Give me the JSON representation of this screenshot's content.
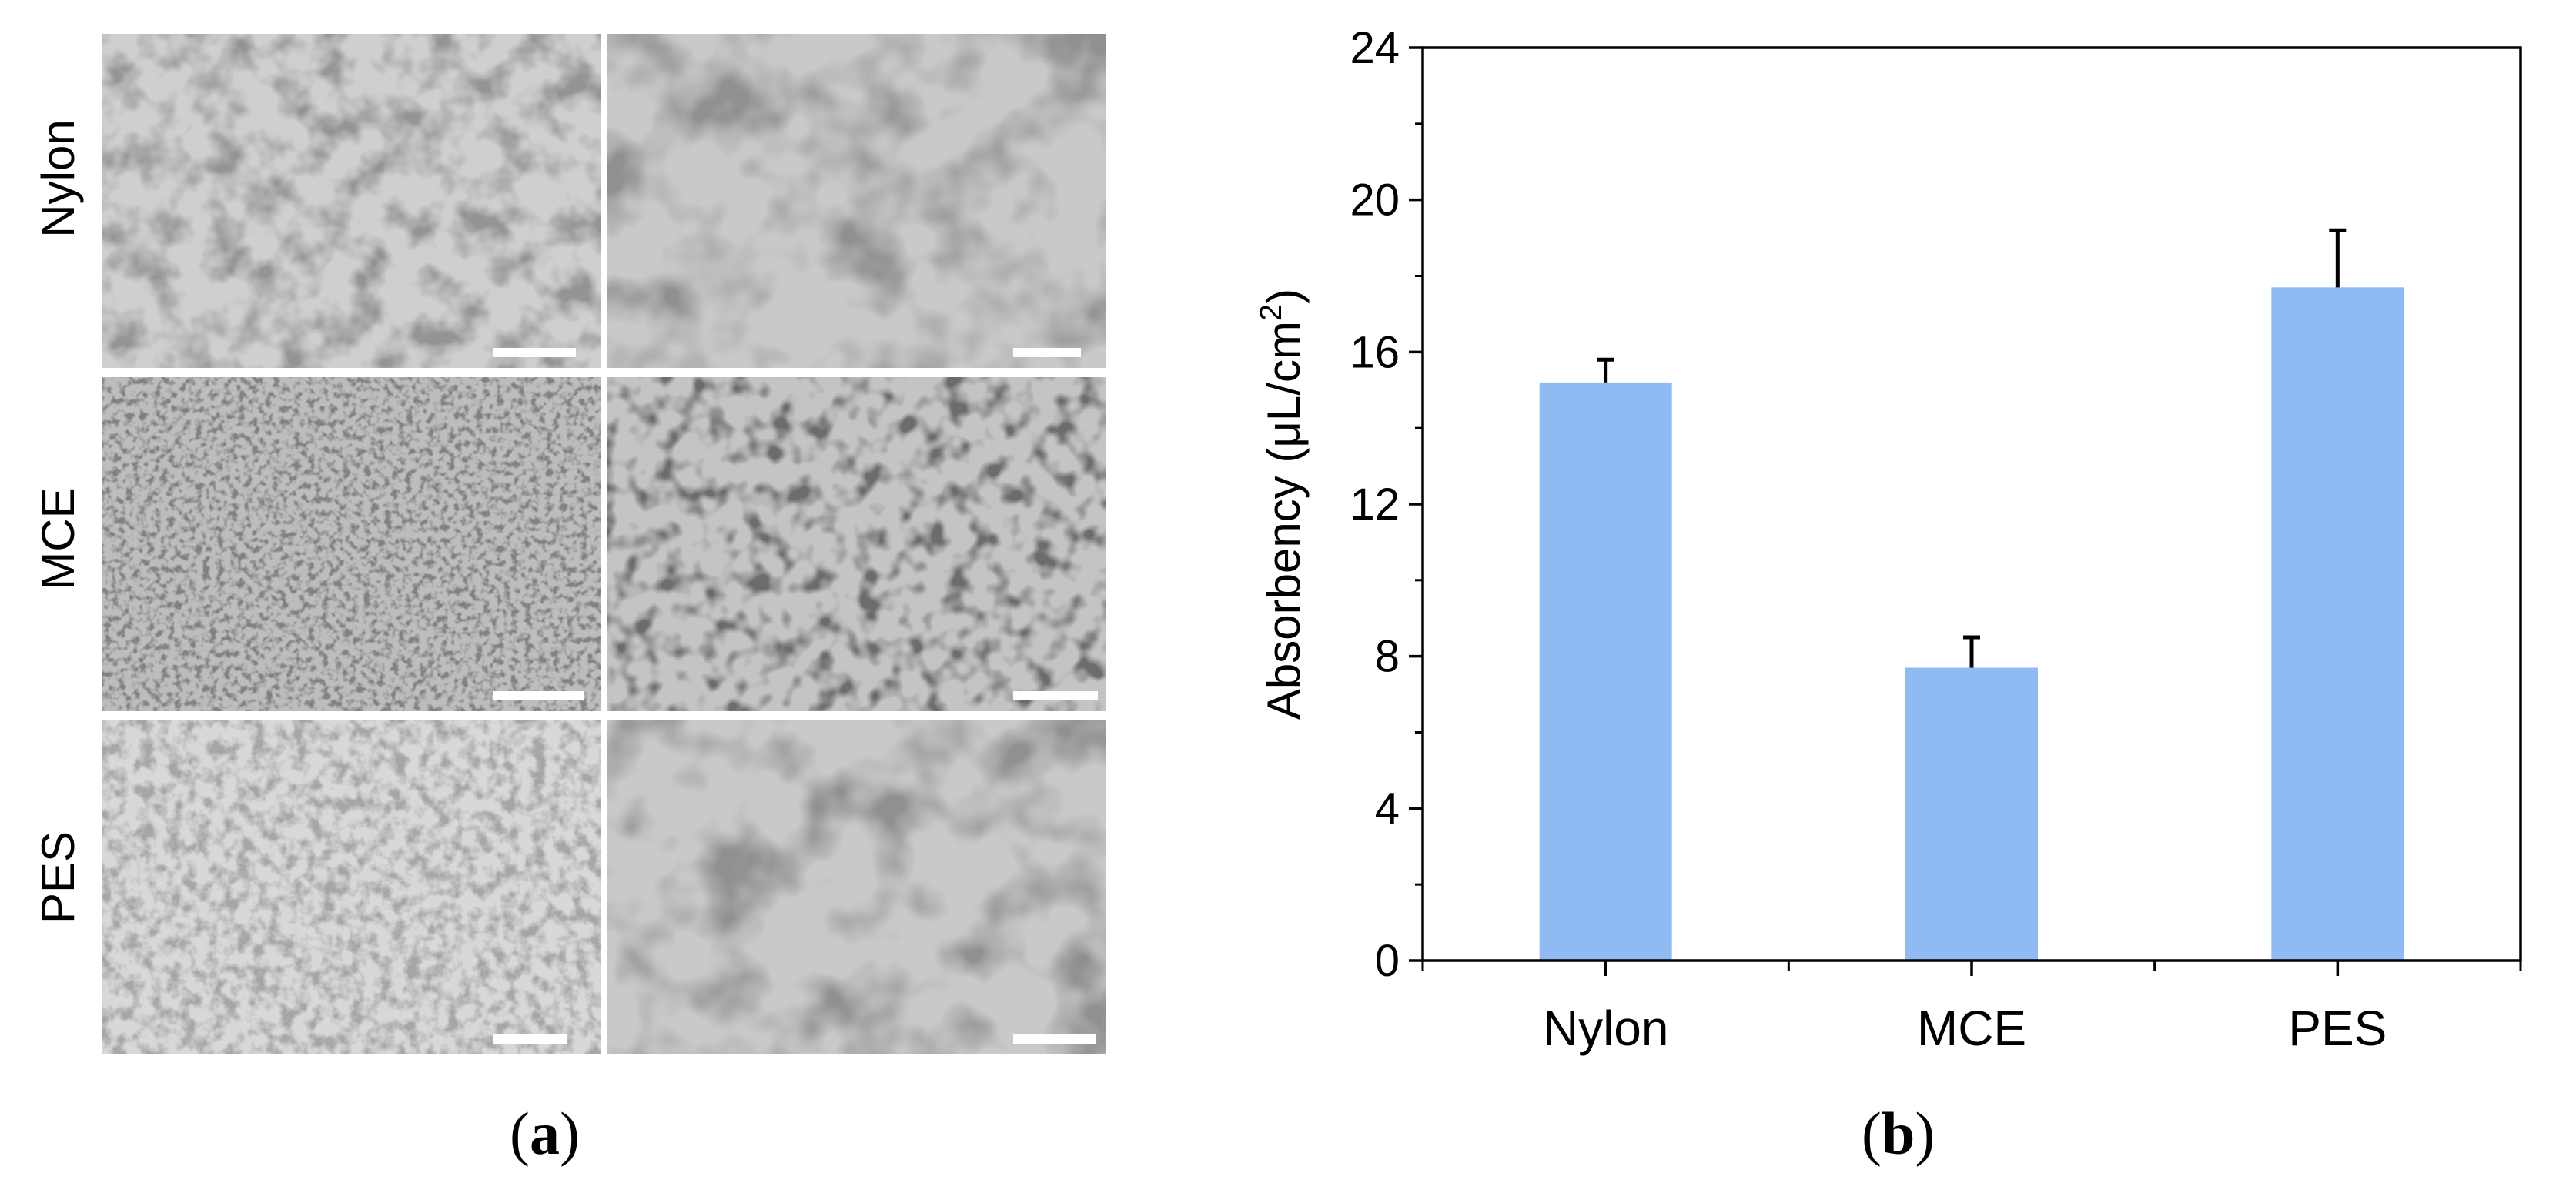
{
  "panel_a": {
    "row_labels": [
      "Nylon",
      "MCE",
      "PES"
    ],
    "caption_open": "(",
    "caption_letter": "a",
    "caption_close": ")"
  },
  "panel_b": {
    "caption_open": "(",
    "caption_letter": "b",
    "caption_close": ")"
  },
  "chart_data": {
    "type": "bar",
    "categories": [
      "Nylon",
      "MCE",
      "PES"
    ],
    "values": [
      15.2,
      7.7,
      17.7
    ],
    "errors": [
      0.6,
      0.8,
      1.5
    ],
    "xlabel": "",
    "ylabel_main": "Absorbency (μL/cm",
    "ylabel_sup": "2",
    "ylabel_close": ")",
    "ylim": [
      0,
      24
    ],
    "yticks": [
      "0",
      "4",
      "8",
      "12",
      "16",
      "20",
      "24"
    ],
    "bar_color": "#8fbaf3",
    "grid": false,
    "legend": "none"
  }
}
